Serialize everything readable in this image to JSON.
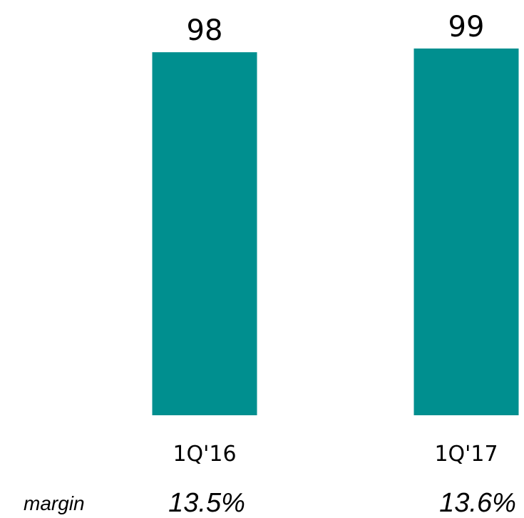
{
  "chart_data": {
    "type": "bar",
    "categories": [
      "1Q'16",
      "1Q'17"
    ],
    "values": [
      98,
      99
    ],
    "data_labels": [
      "98",
      "99"
    ],
    "bar_color": "#008F8F",
    "ylim": [
      0,
      99
    ],
    "title": "",
    "xlabel": "",
    "ylabel": "",
    "grid": false,
    "legend": "none",
    "footer_row": {
      "label": "margin",
      "values": [
        "13.5%",
        "13.6%"
      ]
    }
  }
}
